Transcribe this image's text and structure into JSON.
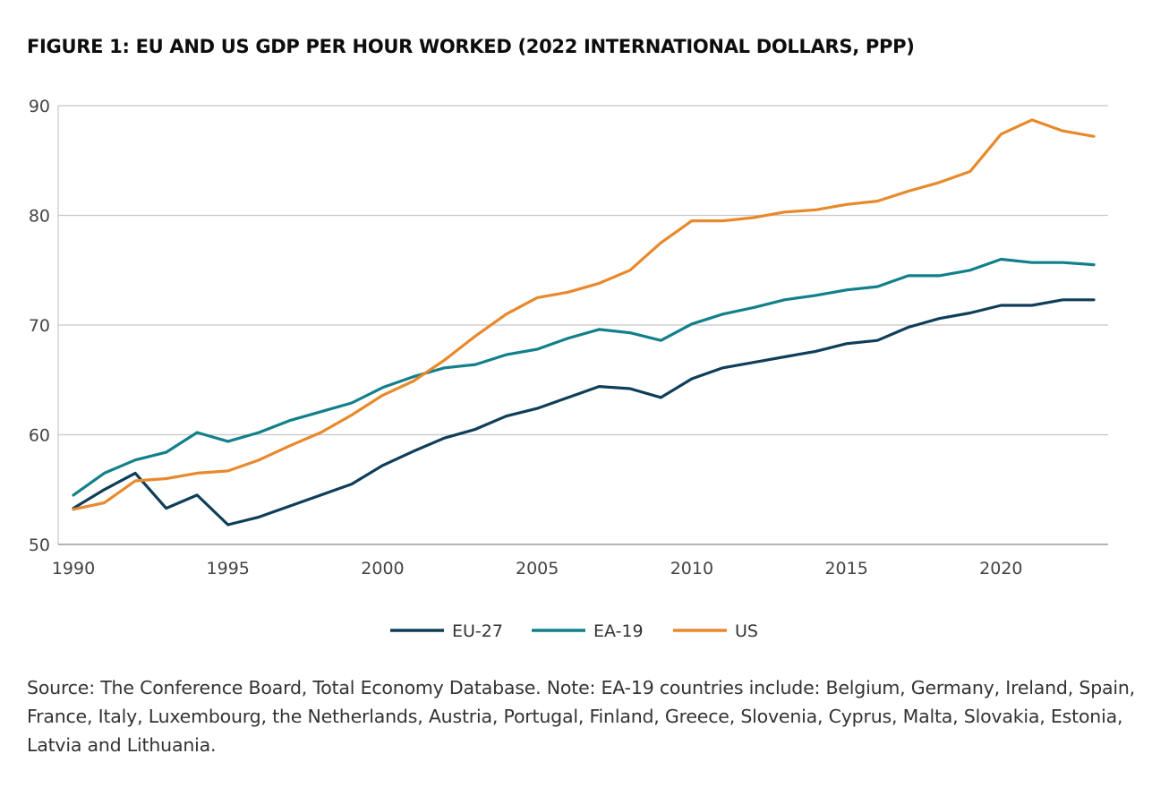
{
  "chart_data": {
    "type": "line",
    "title": "FIGURE 1: EU AND US GDP PER HOUR WORKED (2022 INTERNATIONAL DOLLARS, PPP)",
    "xlabel": "",
    "ylabel": "",
    "xlim": [
      1990,
      2023
    ],
    "ylim": [
      50,
      90
    ],
    "x_ticks": [
      1990,
      1995,
      2000,
      2005,
      2010,
      2015,
      2020
    ],
    "y_ticks": [
      50,
      60,
      70,
      80,
      90
    ],
    "grid": "horizontal",
    "legend_position": "bottom-center",
    "x": [
      1990,
      1991,
      1992,
      1993,
      1994,
      1995,
      1996,
      1997,
      1998,
      1999,
      2000,
      2001,
      2002,
      2003,
      2004,
      2005,
      2006,
      2007,
      2008,
      2009,
      2010,
      2011,
      2012,
      2013,
      2014,
      2015,
      2016,
      2017,
      2018,
      2019,
      2020,
      2021,
      2022,
      2023
    ],
    "series": [
      {
        "name": "EU-27",
        "color": "#0f3e5a",
        "values": [
          53.3,
          55.0,
          56.5,
          53.3,
          54.5,
          51.8,
          52.5,
          53.5,
          54.5,
          55.5,
          57.2,
          58.5,
          59.7,
          60.5,
          61.7,
          62.4,
          63.4,
          64.4,
          64.2,
          63.4,
          65.1,
          66.1,
          66.6,
          67.1,
          67.6,
          68.3,
          68.6,
          69.8,
          70.6,
          71.1,
          71.8,
          71.8,
          72.3,
          72.3
        ]
      },
      {
        "name": "EA-19",
        "color": "#12808a",
        "values": [
          54.5,
          56.5,
          57.7,
          58.4,
          60.2,
          59.4,
          60.2,
          61.3,
          62.1,
          62.9,
          64.3,
          65.3,
          66.1,
          66.4,
          67.3,
          67.8,
          68.8,
          69.6,
          69.3,
          68.6,
          70.1,
          71.0,
          71.6,
          72.3,
          72.7,
          73.2,
          73.5,
          74.5,
          74.5,
          75.0,
          76.0,
          75.7,
          75.7,
          75.5
        ]
      },
      {
        "name": "US",
        "color": "#e8892b",
        "values": [
          53.2,
          53.8,
          55.8,
          56.0,
          56.5,
          56.7,
          57.7,
          59.0,
          60.2,
          61.8,
          63.6,
          64.9,
          66.8,
          69.0,
          71.0,
          72.5,
          73.0,
          73.8,
          75.0,
          77.5,
          79.5,
          79.5,
          79.8,
          80.3,
          80.5,
          81.0,
          81.3,
          82.2,
          83.0,
          84.0,
          87.4,
          88.7,
          87.7,
          87.2
        ]
      }
    ]
  },
  "source_note": "Source: The Conference Board, Total Economy Database. Note: EA-19 countries include: Belgium, Germany, Ireland, Spain, France, Italy, Luxembourg, the Netherlands, Austria, Portugal, Finland, Greece, Slovenia, Cyprus, Malta, Slovakia, Estonia, Latvia and Lithuania."
}
